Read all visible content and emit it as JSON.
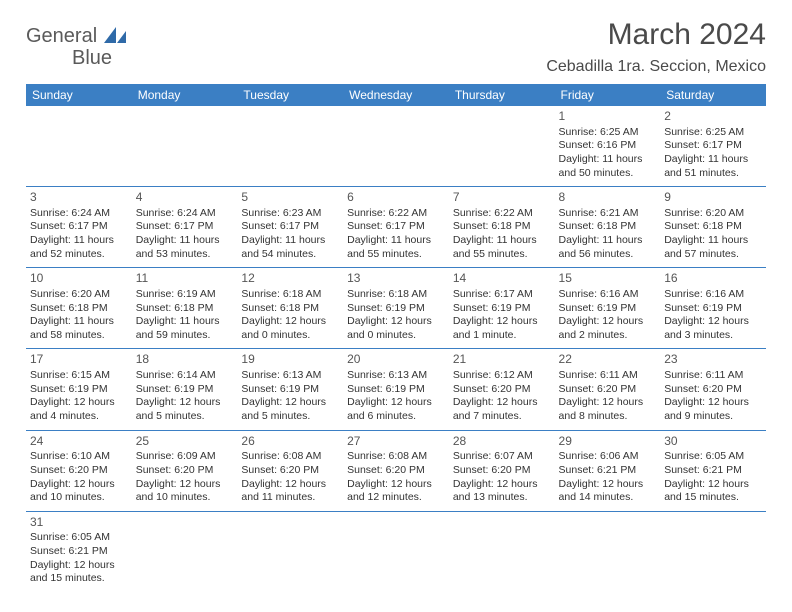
{
  "logo": {
    "word1": "General",
    "word2": "Blue"
  },
  "title": "March 2024",
  "location": "Cebadilla 1ra. Seccion, Mexico",
  "colors": {
    "header_bg": "#3b7fc4",
    "header_text": "#ffffff",
    "border": "#3b7fc4",
    "text": "#333333",
    "title": "#4a4a4a",
    "background": "#ffffff"
  },
  "day_headers": [
    "Sunday",
    "Monday",
    "Tuesday",
    "Wednesday",
    "Thursday",
    "Friday",
    "Saturday"
  ],
  "weeks": [
    [
      null,
      null,
      null,
      null,
      null,
      {
        "n": "1",
        "sr": "Sunrise: 6:25 AM",
        "ss": "Sunset: 6:16 PM",
        "dl1": "Daylight: 11 hours",
        "dl2": "and 50 minutes."
      },
      {
        "n": "2",
        "sr": "Sunrise: 6:25 AM",
        "ss": "Sunset: 6:17 PM",
        "dl1": "Daylight: 11 hours",
        "dl2": "and 51 minutes."
      }
    ],
    [
      {
        "n": "3",
        "sr": "Sunrise: 6:24 AM",
        "ss": "Sunset: 6:17 PM",
        "dl1": "Daylight: 11 hours",
        "dl2": "and 52 minutes."
      },
      {
        "n": "4",
        "sr": "Sunrise: 6:24 AM",
        "ss": "Sunset: 6:17 PM",
        "dl1": "Daylight: 11 hours",
        "dl2": "and 53 minutes."
      },
      {
        "n": "5",
        "sr": "Sunrise: 6:23 AM",
        "ss": "Sunset: 6:17 PM",
        "dl1": "Daylight: 11 hours",
        "dl2": "and 54 minutes."
      },
      {
        "n": "6",
        "sr": "Sunrise: 6:22 AM",
        "ss": "Sunset: 6:17 PM",
        "dl1": "Daylight: 11 hours",
        "dl2": "and 55 minutes."
      },
      {
        "n": "7",
        "sr": "Sunrise: 6:22 AM",
        "ss": "Sunset: 6:18 PM",
        "dl1": "Daylight: 11 hours",
        "dl2": "and 55 minutes."
      },
      {
        "n": "8",
        "sr": "Sunrise: 6:21 AM",
        "ss": "Sunset: 6:18 PM",
        "dl1": "Daylight: 11 hours",
        "dl2": "and 56 minutes."
      },
      {
        "n": "9",
        "sr": "Sunrise: 6:20 AM",
        "ss": "Sunset: 6:18 PM",
        "dl1": "Daylight: 11 hours",
        "dl2": "and 57 minutes."
      }
    ],
    [
      {
        "n": "10",
        "sr": "Sunrise: 6:20 AM",
        "ss": "Sunset: 6:18 PM",
        "dl1": "Daylight: 11 hours",
        "dl2": "and 58 minutes."
      },
      {
        "n": "11",
        "sr": "Sunrise: 6:19 AM",
        "ss": "Sunset: 6:18 PM",
        "dl1": "Daylight: 11 hours",
        "dl2": "and 59 minutes."
      },
      {
        "n": "12",
        "sr": "Sunrise: 6:18 AM",
        "ss": "Sunset: 6:18 PM",
        "dl1": "Daylight: 12 hours",
        "dl2": "and 0 minutes."
      },
      {
        "n": "13",
        "sr": "Sunrise: 6:18 AM",
        "ss": "Sunset: 6:19 PM",
        "dl1": "Daylight: 12 hours",
        "dl2": "and 0 minutes."
      },
      {
        "n": "14",
        "sr": "Sunrise: 6:17 AM",
        "ss": "Sunset: 6:19 PM",
        "dl1": "Daylight: 12 hours",
        "dl2": "and 1 minute."
      },
      {
        "n": "15",
        "sr": "Sunrise: 6:16 AM",
        "ss": "Sunset: 6:19 PM",
        "dl1": "Daylight: 12 hours",
        "dl2": "and 2 minutes."
      },
      {
        "n": "16",
        "sr": "Sunrise: 6:16 AM",
        "ss": "Sunset: 6:19 PM",
        "dl1": "Daylight: 12 hours",
        "dl2": "and 3 minutes."
      }
    ],
    [
      {
        "n": "17",
        "sr": "Sunrise: 6:15 AM",
        "ss": "Sunset: 6:19 PM",
        "dl1": "Daylight: 12 hours",
        "dl2": "and 4 minutes."
      },
      {
        "n": "18",
        "sr": "Sunrise: 6:14 AM",
        "ss": "Sunset: 6:19 PM",
        "dl1": "Daylight: 12 hours",
        "dl2": "and 5 minutes."
      },
      {
        "n": "19",
        "sr": "Sunrise: 6:13 AM",
        "ss": "Sunset: 6:19 PM",
        "dl1": "Daylight: 12 hours",
        "dl2": "and 5 minutes."
      },
      {
        "n": "20",
        "sr": "Sunrise: 6:13 AM",
        "ss": "Sunset: 6:19 PM",
        "dl1": "Daylight: 12 hours",
        "dl2": "and 6 minutes."
      },
      {
        "n": "21",
        "sr": "Sunrise: 6:12 AM",
        "ss": "Sunset: 6:20 PM",
        "dl1": "Daylight: 12 hours",
        "dl2": "and 7 minutes."
      },
      {
        "n": "22",
        "sr": "Sunrise: 6:11 AM",
        "ss": "Sunset: 6:20 PM",
        "dl1": "Daylight: 12 hours",
        "dl2": "and 8 minutes."
      },
      {
        "n": "23",
        "sr": "Sunrise: 6:11 AM",
        "ss": "Sunset: 6:20 PM",
        "dl1": "Daylight: 12 hours",
        "dl2": "and 9 minutes."
      }
    ],
    [
      {
        "n": "24",
        "sr": "Sunrise: 6:10 AM",
        "ss": "Sunset: 6:20 PM",
        "dl1": "Daylight: 12 hours",
        "dl2": "and 10 minutes."
      },
      {
        "n": "25",
        "sr": "Sunrise: 6:09 AM",
        "ss": "Sunset: 6:20 PM",
        "dl1": "Daylight: 12 hours",
        "dl2": "and 10 minutes."
      },
      {
        "n": "26",
        "sr": "Sunrise: 6:08 AM",
        "ss": "Sunset: 6:20 PM",
        "dl1": "Daylight: 12 hours",
        "dl2": "and 11 minutes."
      },
      {
        "n": "27",
        "sr": "Sunrise: 6:08 AM",
        "ss": "Sunset: 6:20 PM",
        "dl1": "Daylight: 12 hours",
        "dl2": "and 12 minutes."
      },
      {
        "n": "28",
        "sr": "Sunrise: 6:07 AM",
        "ss": "Sunset: 6:20 PM",
        "dl1": "Daylight: 12 hours",
        "dl2": "and 13 minutes."
      },
      {
        "n": "29",
        "sr": "Sunrise: 6:06 AM",
        "ss": "Sunset: 6:21 PM",
        "dl1": "Daylight: 12 hours",
        "dl2": "and 14 minutes."
      },
      {
        "n": "30",
        "sr": "Sunrise: 6:05 AM",
        "ss": "Sunset: 6:21 PM",
        "dl1": "Daylight: 12 hours",
        "dl2": "and 15 minutes."
      }
    ],
    [
      {
        "n": "31",
        "sr": "Sunrise: 6:05 AM",
        "ss": "Sunset: 6:21 PM",
        "dl1": "Daylight: 12 hours",
        "dl2": "and 15 minutes."
      },
      null,
      null,
      null,
      null,
      null,
      null
    ]
  ]
}
